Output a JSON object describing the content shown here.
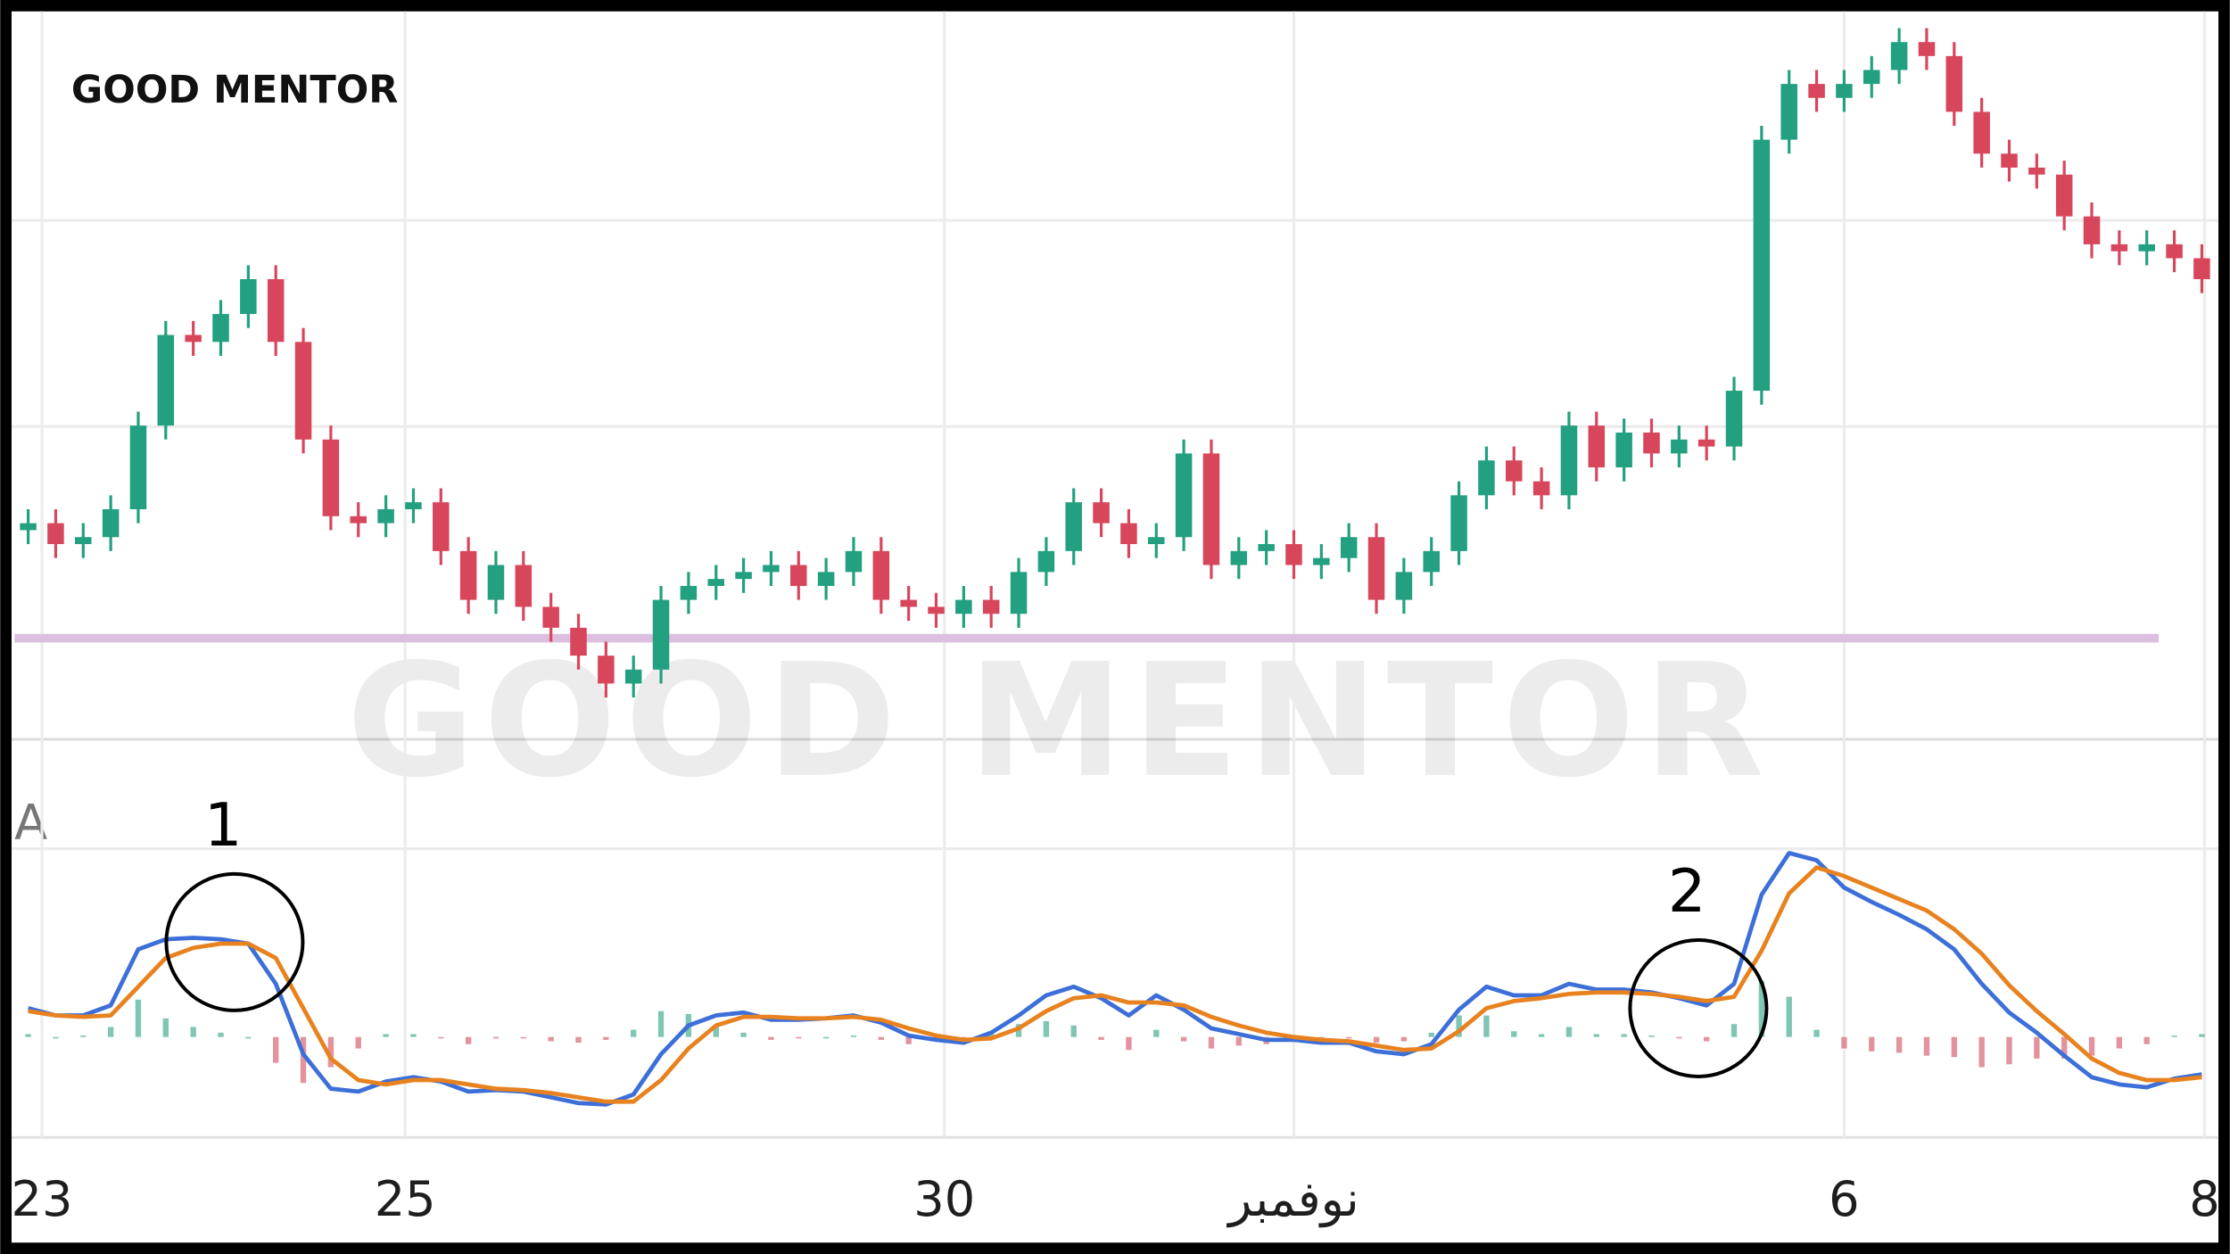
{
  "chart_data": {
    "type": "candlestick",
    "brand": "GOOD MENTOR",
    "x": [
      0,
      1,
      2,
      3,
      4,
      5,
      6,
      7,
      8,
      9,
      10,
      11,
      12,
      13,
      14,
      15,
      16,
      17,
      18,
      19,
      20,
      21,
      22,
      23,
      24,
      25,
      26,
      27,
      28,
      29,
      30,
      31,
      32,
      33,
      34,
      35,
      36,
      37,
      38,
      39,
      40,
      41,
      42,
      43,
      44,
      45,
      46,
      47,
      48,
      49,
      50,
      51,
      52,
      53,
      54,
      55,
      56,
      57,
      58,
      59,
      60,
      61,
      62,
      63,
      64,
      65,
      66,
      67,
      68,
      69,
      70,
      71,
      72,
      73,
      74,
      75,
      76,
      77,
      78,
      79
    ],
    "open": [
      30,
      31,
      28,
      29,
      33,
      45,
      58,
      57,
      61,
      66,
      57,
      43,
      32,
      31,
      33,
      34,
      27,
      20,
      25,
      19,
      16,
      12,
      8,
      10,
      20,
      22,
      23,
      24,
      25,
      22,
      24,
      27,
      20,
      19,
      18,
      20,
      18,
      24,
      27,
      34,
      31,
      28,
      29,
      41,
      25,
      27,
      28,
      25,
      26,
      29,
      20,
      24,
      27,
      35,
      40,
      37,
      35,
      45,
      39,
      44,
      41,
      43,
      42,
      50,
      86,
      94,
      92,
      94,
      96,
      100,
      98,
      90,
      84,
      82,
      81,
      75,
      71,
      70,
      71,
      69
    ],
    "high": [
      33,
      33,
      31,
      35,
      47,
      60,
      60,
      63,
      68,
      68,
      59,
      45,
      34,
      35,
      36,
      36,
      29,
      27,
      27,
      21,
      18,
      14,
      12,
      22,
      24,
      25,
      26,
      27,
      27,
      26,
      29,
      29,
      22,
      21,
      22,
      22,
      26,
      29,
      36,
      36,
      33,
      31,
      43,
      43,
      29,
      30,
      30,
      28,
      31,
      31,
      26,
      29,
      37,
      42,
      42,
      39,
      47,
      47,
      46,
      46,
      45,
      45,
      52,
      88,
      96,
      96,
      96,
      98,
      102,
      102,
      100,
      92,
      86,
      84,
      83,
      77,
      73,
      73,
      73,
      71
    ],
    "low": [
      28,
      26,
      26,
      27,
      31,
      43,
      55,
      55,
      59,
      55,
      41,
      30,
      29,
      29,
      31,
      25,
      18,
      18,
      17,
      14,
      10,
      6,
      6,
      8,
      18,
      20,
      21,
      22,
      20,
      20,
      22,
      18,
      17,
      16,
      16,
      16,
      16,
      22,
      25,
      29,
      26,
      26,
      27,
      23,
      23,
      25,
      23,
      23,
      24,
      18,
      18,
      22,
      25,
      33,
      35,
      33,
      33,
      37,
      37,
      39,
      39,
      40,
      40,
      48,
      84,
      90,
      90,
      92,
      94,
      96,
      88,
      82,
      80,
      79,
      73,
      69,
      68,
      68,
      67,
      64
    ],
    "close": [
      31,
      28,
      29,
      33,
      45,
      58,
      57,
      61,
      66,
      57,
      43,
      32,
      31,
      33,
      34,
      27,
      20,
      25,
      19,
      16,
      12,
      8,
      10,
      20,
      22,
      23,
      24,
      25,
      22,
      24,
      27,
      20,
      19,
      18,
      20,
      18,
      24,
      27,
      34,
      31,
      28,
      29,
      41,
      25,
      27,
      28,
      25,
      26,
      29,
      20,
      24,
      27,
      35,
      40,
      37,
      35,
      45,
      39,
      44,
      41,
      43,
      42,
      50,
      86,
      94,
      92,
      94,
      96,
      100,
      98,
      90,
      84,
      82,
      81,
      75,
      71,
      70,
      71,
      69,
      66
    ],
    "up_color": "#22a07f",
    "down_color": "#d8465c",
    "level": 14.5,
    "level_color": "#dcbfe0",
    "xlim": [
      0,
      80
    ],
    "ylim": [
      0,
      104
    ],
    "xticks": [
      {
        "value": 1,
        "label": "23"
      },
      {
        "value": 14.2,
        "label": "25"
      },
      {
        "value": 33.8,
        "label": "30"
      },
      {
        "value": 46.5,
        "label": "نوفمبر"
      },
      {
        "value": 66.5,
        "label": "6"
      },
      {
        "value": 79.6,
        "label": "8"
      }
    ],
    "indicator": {
      "label": "A",
      "ylim": [
        -60,
        130
      ],
      "series": [
        {
          "color": "#3d6fd9",
          "values": [
            20,
            15,
            15,
            22,
            61,
            68,
            69,
            68,
            65,
            37,
            -12,
            -36,
            -38,
            -31,
            -28,
            -31,
            -38,
            -37,
            -38,
            -42,
            -46,
            -47,
            -40,
            -12,
            8,
            15,
            17,
            12,
            12,
            13,
            15,
            10,
            1,
            -2,
            -4,
            3,
            15,
            29,
            35,
            27,
            15,
            29,
            19,
            6,
            2,
            -2,
            -2,
            -4,
            -4,
            -10,
            -12,
            -5,
            19,
            35,
            29,
            29,
            37,
            33,
            33,
            31,
            27,
            22,
            37,
            99,
            128,
            123,
            104,
            94,
            85,
            75,
            61,
            37,
            17,
            3,
            -13,
            -28,
            -33,
            -35,
            -29,
            -26
          ]
        },
        {
          "color": "#e8821f",
          "values": [
            18,
            15,
            14,
            15,
            35,
            55,
            62,
            65,
            65,
            55,
            20,
            -15,
            -30,
            -33,
            -30,
            -30,
            -33,
            -36,
            -37,
            -39,
            -42,
            -45,
            -45,
            -30,
            -8,
            8,
            14,
            14,
            13,
            13,
            14,
            12,
            6,
            1,
            -2,
            -1,
            6,
            18,
            27,
            29,
            24,
            24,
            22,
            14,
            8,
            3,
            0,
            -2,
            -3,
            -6,
            -9,
            -8,
            4,
            20,
            25,
            27,
            30,
            31,
            31,
            30,
            28,
            25,
            28,
            60,
            100,
            118,
            112,
            104,
            96,
            88,
            75,
            58,
            36,
            18,
            2,
            -15,
            -25,
            -30,
            -30,
            -28
          ]
        }
      ],
      "histogram": [
        2,
        0,
        1,
        7,
        26,
        13,
        7,
        3,
        0,
        -18,
        -32,
        -21,
        -8,
        2,
        2,
        -1,
        -5,
        -1,
        -1,
        -3,
        -4,
        -2,
        5,
        18,
        16,
        7,
        3,
        -2,
        -1,
        0,
        1,
        -2,
        -5,
        -3,
        -2,
        4,
        9,
        11,
        8,
        -2,
        -9,
        5,
        -3,
        -8,
        -6,
        -5,
        -2,
        -2,
        -1,
        -4,
        -3,
        3,
        15,
        15,
        4,
        2,
        7,
        2,
        2,
        1,
        -1,
        -3,
        9,
        39,
        28,
        5,
        -8,
        -10,
        -11,
        -13,
        -14,
        -21,
        -19,
        -15,
        -15,
        -13,
        -8,
        -5,
        1,
        2
      ],
      "histogram_up_color": "#5fb8a3",
      "histogram_down_color": "#dc7886"
    },
    "annotations": [
      {
        "text": "1",
        "x": 8,
        "y": 66
      },
      {
        "text": "2",
        "x": 61.2,
        "y": 20
      }
    ]
  }
}
